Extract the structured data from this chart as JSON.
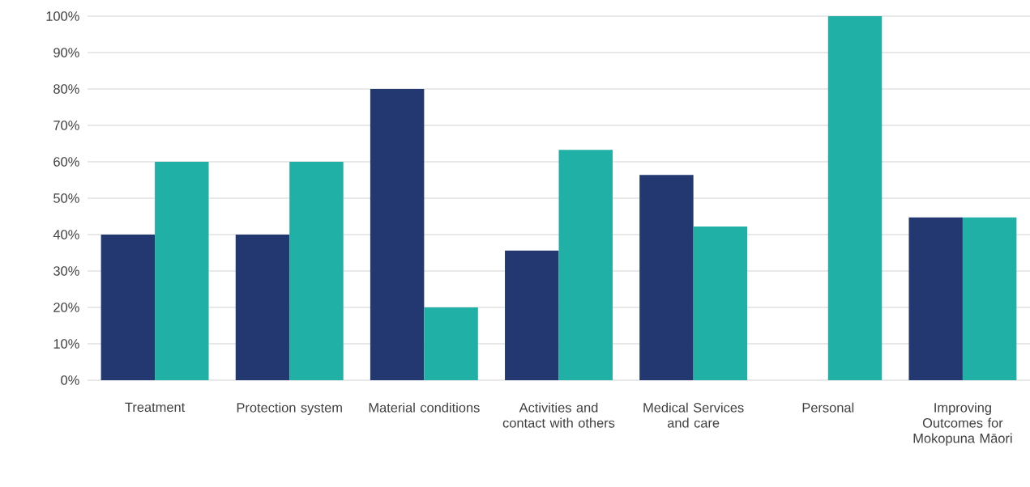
{
  "chart_data": {
    "type": "bar",
    "categories": [
      "Treatment",
      "Protection system",
      "Material conditions",
      "Activities and contact with others",
      "Medical Services and care",
      "Personal",
      "Improving Outcomes for Mokopuna Māori"
    ],
    "series": [
      {
        "color": "#233870",
        "values": [
          40,
          40,
          80,
          35.6,
          56.4,
          0,
          44.7
        ]
      },
      {
        "color": "#20b0a5",
        "values": [
          60,
          60,
          20,
          63.3,
          42.2,
          100,
          44.7
        ]
      }
    ],
    "ylim": [
      0,
      100
    ],
    "yticks": [
      {
        "value": 0,
        "label": "0%"
      },
      {
        "value": 10,
        "label": "10%"
      },
      {
        "value": 20,
        "label": "20%"
      },
      {
        "value": 30,
        "label": "30%"
      },
      {
        "value": 40,
        "label": "40%"
      },
      {
        "value": 50,
        "label": "50%"
      },
      {
        "value": 60,
        "label": "60%"
      },
      {
        "value": 70,
        "label": "70%"
      },
      {
        "value": 80,
        "label": "80%"
      },
      {
        "value": 90,
        "label": "90%"
      },
      {
        "value": 100,
        "label": "100%"
      }
    ],
    "grid": "y",
    "legend": false
  }
}
